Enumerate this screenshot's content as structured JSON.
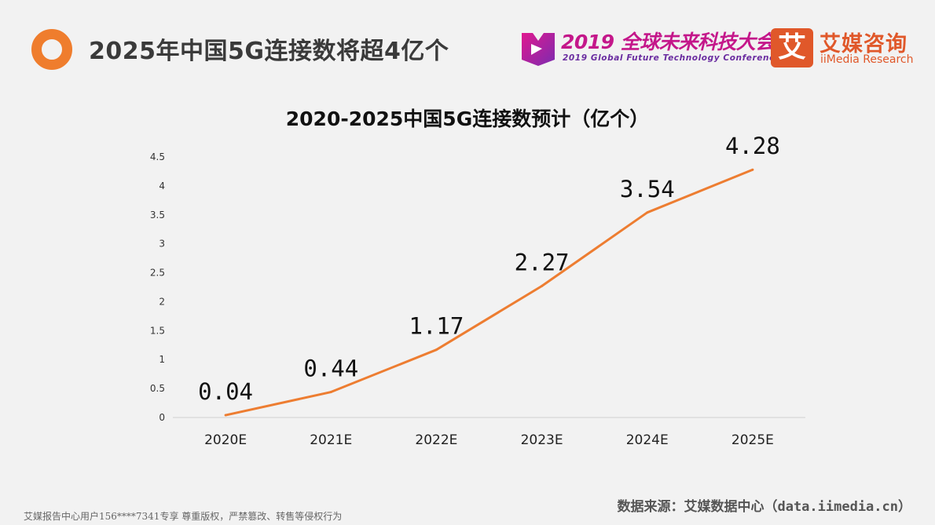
{
  "header": {
    "title": "2025年中国5G连接数将超4亿个",
    "ring_color": "#ef7d2d"
  },
  "conference_logo": {
    "icon": "conference-emblem-icon",
    "title": "2019 全球未来科技大会",
    "subtitle": "2019 Global Future Technology Conference"
  },
  "brand_logo": {
    "icon_glyph": "艾",
    "name": "艾媒咨询",
    "name_en": "iiMedia Research",
    "color": "#e0582a"
  },
  "footer": {
    "copyright": "艾媒报告中心用户156****7341专享 尊重版权，严禁篡改、转售等侵权行为",
    "source": "数据来源：艾媒数据中心（data.iimedia.cn）"
  },
  "chart_data": {
    "type": "line",
    "title": "2020-2025中国5G连接数预计（亿个）",
    "categories": [
      "2020E",
      "2021E",
      "2022E",
      "2023E",
      "2024E",
      "2025E"
    ],
    "values": [
      0.04,
      0.44,
      1.17,
      2.27,
      3.54,
      4.28
    ],
    "value_labels": [
      "0.04",
      "0.44",
      "1.17",
      "2.27",
      "3.54",
      "4.28"
    ],
    "y_ticks": [
      "0",
      "0.5",
      "1",
      "1.5",
      "2",
      "2.5",
      "3",
      "3.5",
      "4",
      "4.5"
    ],
    "ylim": [
      0,
      4.5
    ],
    "grid": false,
    "legend": "none",
    "line_color": "#ed7d31",
    "xlabel": "",
    "ylabel": ""
  }
}
